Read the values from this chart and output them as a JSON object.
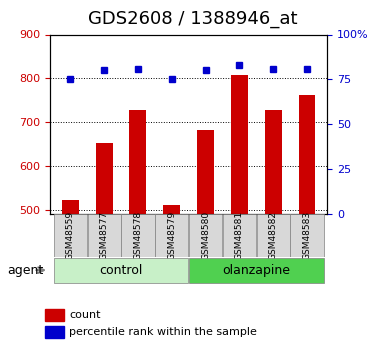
{
  "title": "GDS2608 / 1388946_at",
  "samples": [
    "GSM48559",
    "GSM48577",
    "GSM48578",
    "GSM48579",
    "GSM48580",
    "GSM48581",
    "GSM48582",
    "GSM48583"
  ],
  "counts": [
    522,
    651,
    728,
    511,
    681,
    808,
    727,
    762
  ],
  "percentiles": [
    75,
    80,
    81,
    75,
    80,
    83,
    81,
    81
  ],
  "ylim_left": [
    490,
    900
  ],
  "ylim_right": [
    0,
    100
  ],
  "yticks_left": [
    500,
    600,
    700,
    800,
    900
  ],
  "yticks_right": [
    0,
    25,
    50,
    75,
    100
  ],
  "bar_color": "#cc0000",
  "dot_color": "#0000cc",
  "group_colors": {
    "control": "#c8f0c8",
    "olanzapine": "#50d050"
  },
  "agent_label": "agent",
  "legend_count": "count",
  "legend_pct": "percentile rank within the sample",
  "title_fontsize": 13,
  "group_fontsize": 9,
  "left_tick_color": "#cc0000",
  "right_tick_color": "#0000cc",
  "groups_info": [
    {
      "label": "control",
      "start": 0,
      "end": 3,
      "color": "#c8f0c8"
    },
    {
      "label": "olanzapine",
      "start": 4,
      "end": 7,
      "color": "#50d050"
    }
  ]
}
